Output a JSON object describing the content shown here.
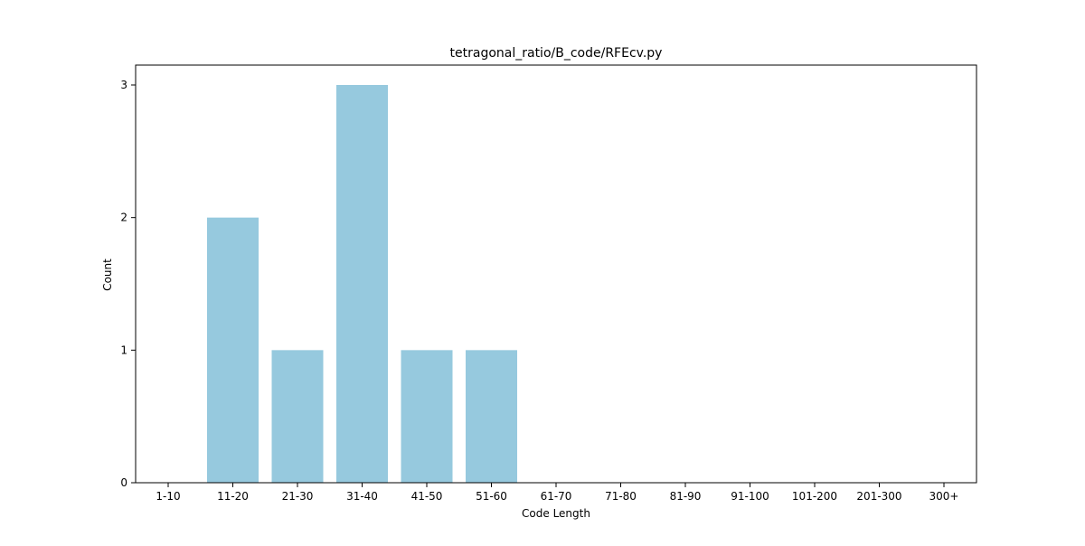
{
  "chart_data": {
    "type": "bar",
    "title": "tetragonal_ratio/B_code/RFEcv.py",
    "xlabel": "Code Length",
    "ylabel": "Count",
    "categories": [
      "1-10",
      "11-20",
      "21-30",
      "31-40",
      "41-50",
      "51-60",
      "61-70",
      "71-80",
      "81-90",
      "91-100",
      "101-200",
      "201-300",
      "300+"
    ],
    "values": [
      0,
      2,
      1,
      3,
      1,
      1,
      0,
      0,
      0,
      0,
      0,
      0,
      0
    ],
    "ylim": [
      0,
      3.15
    ],
    "yticks": [
      0,
      1,
      2,
      3
    ],
    "grid": false,
    "bar_color": "#96c9de",
    "axis_color": "#000000"
  }
}
